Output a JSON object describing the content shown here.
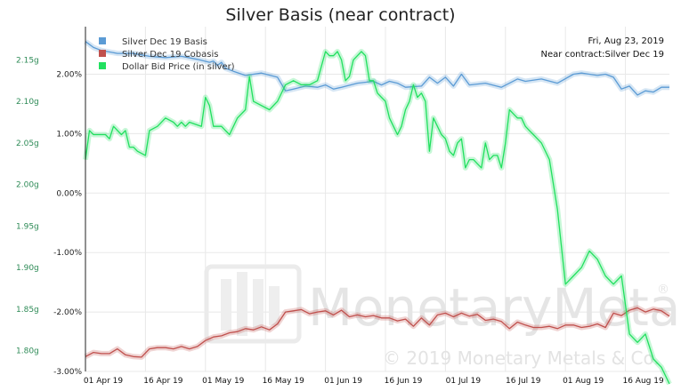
{
  "chart_data": {
    "type": "line",
    "title": "Silver Basis (near contract)",
    "x_ticks": [
      "01 Apr 19",
      "16 Apr 19",
      "01 May 19",
      "16 May 19",
      "01 Jun 19",
      "16 Jun 19",
      "01 Jul 19",
      "16 Jul 19",
      "01 Aug 19",
      "16 Aug 19"
    ],
    "y_left_ticks": [
      "2.15g",
      "2.10g",
      "2.05g",
      "2.00g",
      "1.95g",
      "1.90g",
      "1.85g",
      "1.80g"
    ],
    "y_left_values": [
      2.15,
      2.1,
      2.05,
      2.0,
      1.95,
      1.9,
      1.85,
      1.8
    ],
    "y_left_range": [
      1.775,
      2.19
    ],
    "y_right_ticks": [
      "2.00%",
      "1.00%",
      "0.00%",
      "-1.00%",
      "-2.00%",
      "-3.00%"
    ],
    "y_right_values": [
      2.0,
      1.0,
      0.0,
      -1.0,
      -2.0,
      -3.0
    ],
    "y_right_range": [
      -3.0,
      2.8
    ],
    "x_range": [
      0,
      146
    ],
    "grid": true,
    "legend_position": "top-left",
    "date_label_line1": "Fri, Aug 23, 2019",
    "date_label_line2": "Near contract:Silver Dec 19",
    "watermark_brand": "MonetaryMetals",
    "watermark_registered": "®",
    "watermark_copyright": "© 2019 Monetary Metals & Co.",
    "series": [
      {
        "name": "Silver Dec 19 Basis",
        "color": "#5b9bd5",
        "axis": "right",
        "x": [
          0,
          2,
          4,
          8,
          12,
          16,
          20,
          24,
          28,
          31,
          32,
          33,
          34,
          35,
          37,
          40,
          44,
          48,
          50,
          52,
          55,
          58,
          60,
          62,
          64,
          68,
          72,
          74,
          76,
          78,
          80,
          84,
          86,
          88,
          90,
          92,
          94,
          96,
          100,
          104,
          106,
          108,
          110,
          114,
          118,
          122,
          124,
          126,
          128,
          130,
          132,
          134,
          136,
          138,
          140,
          142,
          144,
          146
        ],
        "y": [
          2.55,
          2.45,
          2.4,
          2.35,
          2.35,
          2.3,
          2.28,
          2.3,
          2.25,
          2.2,
          2.22,
          2.15,
          2.2,
          2.1,
          2.05,
          1.98,
          2.02,
          1.95,
          1.72,
          1.75,
          1.8,
          1.78,
          1.82,
          1.75,
          1.78,
          1.85,
          1.88,
          1.82,
          1.88,
          1.85,
          1.78,
          1.8,
          1.95,
          1.85,
          1.95,
          1.8,
          2.0,
          1.82,
          1.85,
          1.78,
          1.85,
          1.92,
          1.88,
          1.92,
          1.85,
          2.0,
          2.02,
          2.0,
          1.98,
          2.0,
          1.95,
          1.75,
          1.8,
          1.65,
          1.72,
          1.7,
          1.78,
          1.78
        ]
      },
      {
        "name": "Silver Dec 19 Cobasis",
        "color": "#c0504d",
        "axis": "right",
        "x": [
          0,
          2,
          4,
          6,
          8,
          10,
          12,
          14,
          16,
          18,
          20,
          22,
          24,
          26,
          28,
          30,
          32,
          34,
          36,
          38,
          40,
          42,
          44,
          46,
          48,
          50,
          52,
          54,
          56,
          58,
          60,
          62,
          64,
          66,
          68,
          70,
          72,
          74,
          76,
          78,
          80,
          82,
          84,
          86,
          88,
          90,
          92,
          94,
          96,
          98,
          100,
          102,
          104,
          106,
          108,
          110,
          112,
          114,
          116,
          118,
          120,
          122,
          124,
          126,
          128,
          130,
          132,
          134,
          136,
          138,
          140,
          142,
          144,
          146
        ],
        "y": [
          -2.75,
          -2.68,
          -2.7,
          -2.7,
          -2.62,
          -2.72,
          -2.75,
          -2.76,
          -2.62,
          -2.6,
          -2.6,
          -2.62,
          -2.58,
          -2.62,
          -2.58,
          -2.48,
          -2.42,
          -2.4,
          -2.35,
          -2.33,
          -2.28,
          -2.3,
          -2.25,
          -2.3,
          -2.2,
          -2.0,
          -1.98,
          -1.96,
          -2.03,
          -2.0,
          -1.98,
          -2.05,
          -1.97,
          -2.08,
          -2.05,
          -2.08,
          -2.06,
          -2.1,
          -2.1,
          -2.15,
          -2.12,
          -2.24,
          -2.1,
          -2.22,
          -2.05,
          -2.02,
          -2.08,
          -2.02,
          -2.07,
          -2.04,
          -2.14,
          -2.12,
          -2.16,
          -2.28,
          -2.17,
          -2.22,
          -2.26,
          -2.26,
          -2.24,
          -2.28,
          -2.22,
          -2.22,
          -2.26,
          -2.24,
          -2.2,
          -2.26,
          -2.02,
          -2.06,
          -1.97,
          -1.93,
          -2.0,
          -1.95,
          -1.98,
          -2.07
        ]
      },
      {
        "name": "Dollar Bid Price (in silver)",
        "color": "#21e05f",
        "axis": "left",
        "x": [
          0,
          1,
          2,
          4,
          5,
          6,
          7,
          9,
          10,
          11,
          12,
          13,
          15,
          16,
          18,
          20,
          22,
          23,
          24,
          25,
          26,
          29,
          30,
          31,
          32,
          33,
          34,
          35,
          36,
          38,
          40,
          41,
          42,
          46,
          48,
          50,
          52,
          54,
          56,
          58,
          60,
          61,
          62,
          63,
          64,
          65,
          66,
          67,
          68,
          69,
          70,
          71,
          72,
          73,
          74,
          75,
          76,
          77,
          78,
          79,
          80,
          81,
          82,
          83,
          84,
          85,
          86,
          87,
          88,
          89,
          90,
          91,
          92,
          93,
          94,
          95,
          96,
          97,
          98,
          99,
          100,
          101,
          102,
          103,
          104,
          105,
          106,
          107,
          108,
          109,
          110,
          111,
          112,
          113,
          114,
          116,
          118,
          120,
          122,
          124,
          126,
          128,
          130,
          132,
          134,
          136,
          138,
          140,
          142,
          144,
          146
        ],
        "y": [
          2.03,
          2.065,
          2.06,
          2.06,
          2.06,
          2.055,
          2.07,
          2.06,
          2.065,
          2.045,
          2.045,
          2.04,
          2.035,
          2.065,
          2.07,
          2.08,
          2.075,
          2.07,
          2.075,
          2.07,
          2.075,
          2.07,
          2.105,
          2.095,
          2.07,
          2.07,
          2.07,
          2.065,
          2.06,
          2.08,
          2.09,
          2.13,
          2.1,
          2.09,
          2.1,
          2.12,
          2.125,
          2.12,
          2.12,
          2.125,
          2.16,
          2.155,
          2.155,
          2.16,
          2.15,
          2.125,
          2.13,
          2.15,
          2.155,
          2.16,
          2.155,
          2.125,
          2.125,
          2.11,
          2.105,
          2.1,
          2.08,
          2.07,
          2.06,
          2.07,
          2.09,
          2.1,
          2.12,
          2.105,
          2.11,
          2.1,
          2.04,
          2.08,
          2.07,
          2.06,
          2.055,
          2.04,
          2.035,
          2.05,
          2.055,
          2.02,
          2.03,
          2.03,
          2.025,
          2.02,
          2.05,
          2.03,
          2.035,
          2.035,
          2.02,
          2.05,
          2.09,
          2.085,
          2.08,
          2.08,
          2.07,
          2.065,
          2.06,
          2.055,
          2.05,
          2.03,
          1.97,
          1.88,
          1.89,
          1.9,
          1.92,
          1.91,
          1.89,
          1.88,
          1.89,
          1.82,
          1.81,
          1.82,
          1.79,
          1.78,
          1.76
        ]
      }
    ]
  }
}
